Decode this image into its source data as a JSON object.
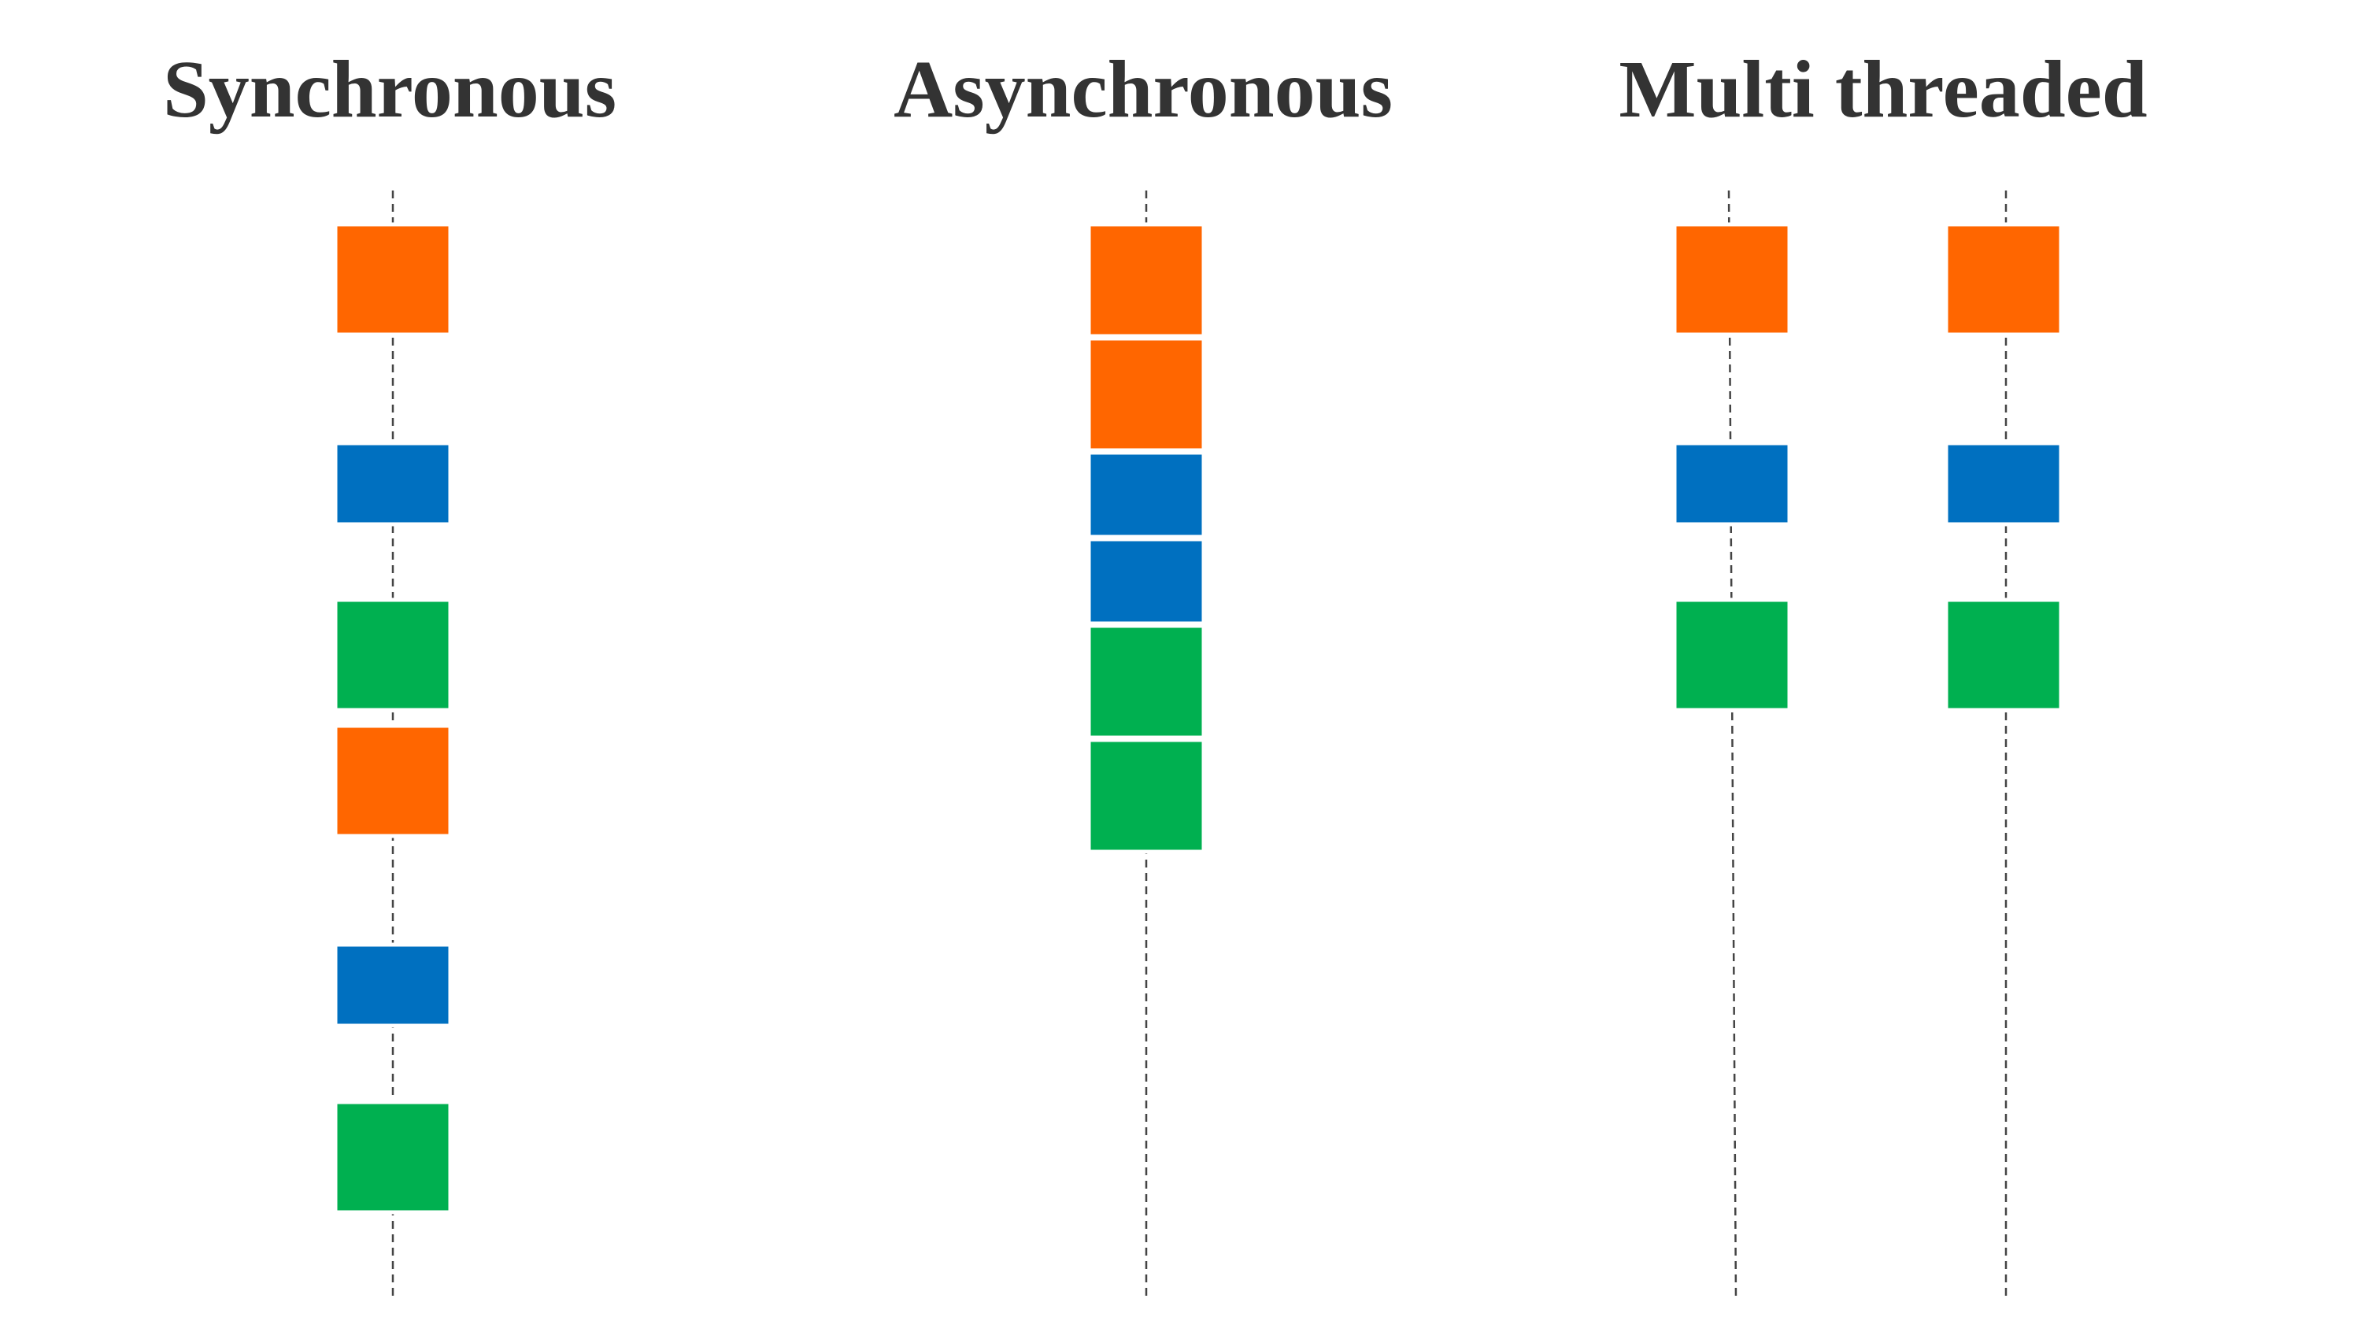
{
  "diagram": {
    "colors": {
      "orange": "#FF6600",
      "blue": "#0070C0",
      "green": "#00B050",
      "line": "#444444",
      "title": "#333333"
    },
    "columns": [
      {
        "id": "synchronous",
        "title": "Synchronous",
        "threads": [
          {
            "tasks": [
              "orange",
              "blue",
              "green",
              "orange",
              "blue",
              "green"
            ]
          }
        ]
      },
      {
        "id": "asynchronous",
        "title": "Asynchronous",
        "threads": [
          {
            "tasks": [
              "orange",
              "orange",
              "blue",
              "blue",
              "green",
              "green"
            ]
          }
        ]
      },
      {
        "id": "multi-threaded",
        "title": "Multi threaded",
        "threads": [
          {
            "tasks": [
              "orange",
              "blue",
              "green"
            ]
          },
          {
            "tasks": [
              "orange",
              "blue",
              "green"
            ]
          }
        ]
      }
    ]
  }
}
